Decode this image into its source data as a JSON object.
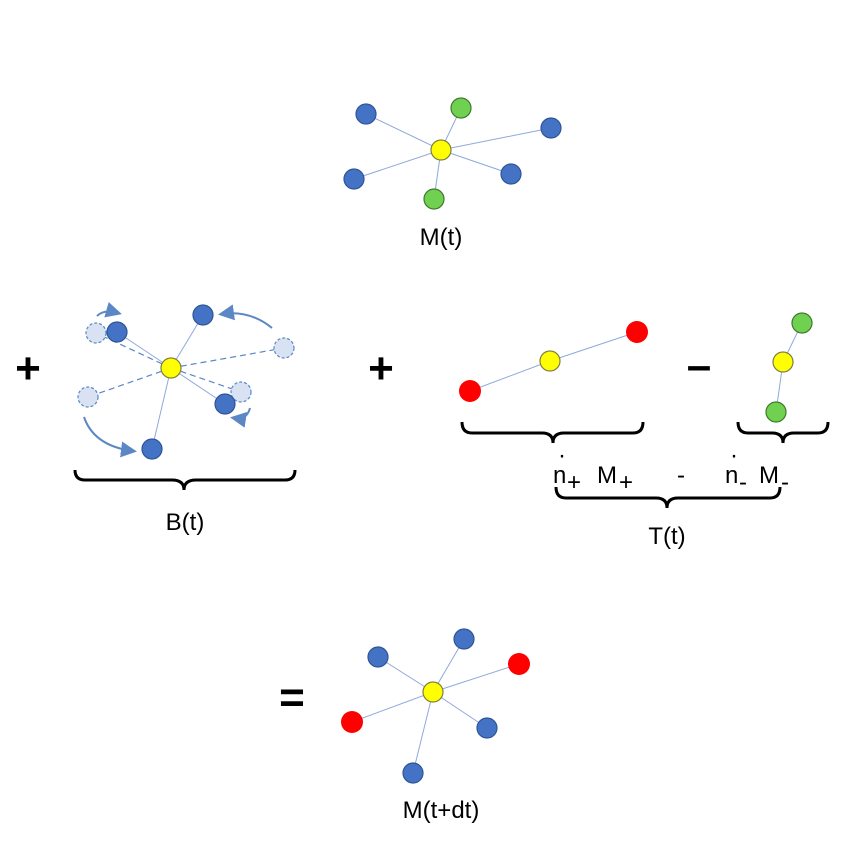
{
  "colors": {
    "blue": "#4472C4",
    "blue_stroke": "#2F5597",
    "yellow": "#FFFF00",
    "yellow_stroke": "#7F7F40",
    "green": "#70D050",
    "green_stroke": "#3E7A2E",
    "red": "#FF0000",
    "ghost": "#D9E2F3",
    "edge": "#8EA9DB",
    "arrow": "#5B87C5"
  },
  "labels": {
    "initial": "M(t)",
    "birth": "B(t)",
    "transfer": "T(t)",
    "final": "M(t+dt)",
    "n_plus_dot": "·",
    "n_plus": "n",
    "plus_sub": "+",
    "m_plus": "M",
    "minus_sep": "-",
    "n_minus_dot": "·",
    "n_minus": "n",
    "minus_sub": "-",
    "m_minus": "M"
  },
  "operators": {
    "plus_1": "+",
    "plus_2": "+",
    "minus": "–",
    "equals": "="
  }
}
